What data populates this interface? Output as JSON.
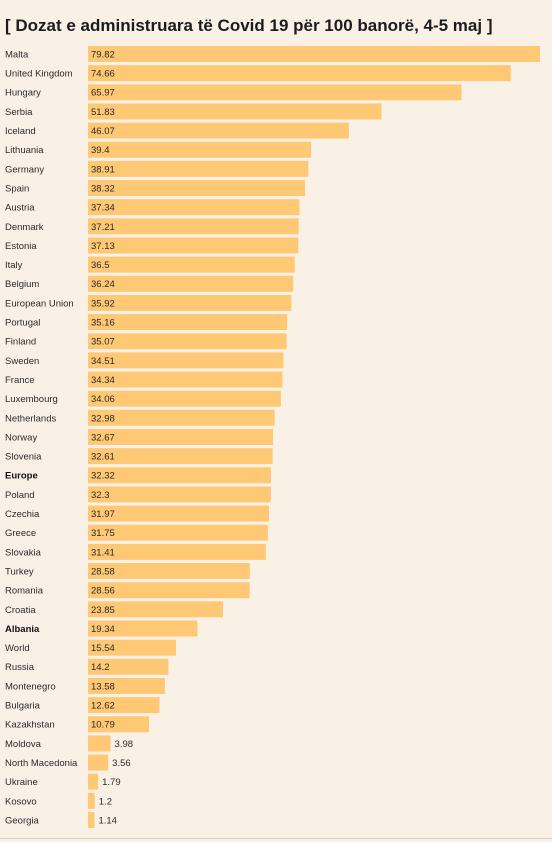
{
  "title": "[ Dozat e administruara të Covid 19 për 100 banorë, 4-5 maj ]",
  "colors": {
    "bar": "#ffc875",
    "background": "#faf1e6"
  },
  "chart_data": {
    "type": "bar",
    "orientation": "horizontal",
    "title": "[ Dozat e administruara të Covid 19 për 100 banorë, 4-5 maj ]",
    "xlabel": "",
    "ylabel": "",
    "xlim": [
      0,
      79.82
    ],
    "grid": false,
    "bold_categories": [
      "Europe",
      "Albania"
    ],
    "categories": [
      "Malta",
      "United Kingdom",
      "Hungary",
      "Serbia",
      "Iceland",
      "Lithuania",
      "Germany",
      "Spain",
      "Austria",
      "Denmark",
      "Estonia",
      "Italy",
      "Belgium",
      "European Union",
      "Portugal",
      "Finland",
      "Sweden",
      "France",
      "Luxembourg",
      "Netherlands",
      "Norway",
      "Slovenia",
      "Europe",
      "Poland",
      "Czechia",
      "Greece",
      "Slovakia",
      "Turkey",
      "Romania",
      "Croatia",
      "Albania",
      "World",
      "Russia",
      "Montenegro",
      "Bulgaria",
      "Kazakhstan",
      "Moldova",
      "North Macedonia",
      "Ukraine",
      "Kosovo",
      "Georgia"
    ],
    "value_labels": [
      "79.82",
      "74.66",
      "65.97",
      "51.83",
      "46.07",
      "39.4",
      "38.91",
      "38.32",
      "37.34",
      "37.21",
      "37.13",
      "36.5",
      "36.24",
      "35.92",
      "35.16",
      "35.07",
      "34.51",
      "34.34",
      "34.06",
      "32.98",
      "32.67",
      "32.61",
      "32.32",
      "32.3",
      "31.97",
      "31.75",
      "31.41",
      "28.58",
      "28.56",
      "23.85",
      "19.34",
      "15.54",
      "14.2",
      "13.58",
      "12.62",
      "10.79",
      "3.98",
      "3.56",
      "1.79",
      "1.2",
      "1.14"
    ],
    "values": [
      79.82,
      74.66,
      65.97,
      51.83,
      46.07,
      39.4,
      38.91,
      38.32,
      37.34,
      37.21,
      37.13,
      36.5,
      36.24,
      35.92,
      35.16,
      35.07,
      34.51,
      34.34,
      34.06,
      32.98,
      32.67,
      32.61,
      32.32,
      32.3,
      31.97,
      31.75,
      31.41,
      28.58,
      28.56,
      23.85,
      19.34,
      15.54,
      14.2,
      13.58,
      12.62,
      10.79,
      3.98,
      3.56,
      1.79,
      1.2,
      1.14
    ]
  }
}
